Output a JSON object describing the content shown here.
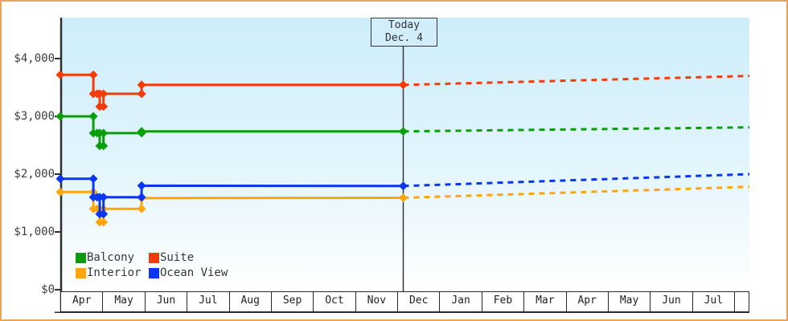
{
  "page": {
    "border_color": "#e9a45c",
    "background": "#ffffff",
    "plot_bg_top": "#cdeefb",
    "plot_bg_bottom": "#ffffff",
    "axis_color": "#2b2f31"
  },
  "chart_data": {
    "type": "line",
    "title": "",
    "description": "Cabin price history with dotted forecast after today",
    "y_axis": {
      "tick_labels": [
        "$0",
        "$1,000",
        "$2,000",
        "$3,000",
        "$4,000"
      ],
      "tick_values": [
        0,
        1000,
        2000,
        3000,
        4000
      ],
      "ylim": [
        0,
        4700
      ],
      "grid": false
    },
    "x_axis": {
      "months": [
        "Apr",
        "May",
        "Jun",
        "Jul",
        "Aug",
        "Sep",
        "Oct",
        "Nov",
        "Dec",
        "Jan",
        "Feb",
        "Mar",
        "Apr",
        "May",
        "Jun",
        "Jul"
      ]
    },
    "today_marker": {
      "line1": "Today",
      "line2": "Dec. 4",
      "month_index": 8.1
    },
    "series": [
      {
        "name": "Interior",
        "color": "#ffa50d",
        "solid": [
          [
            0,
            1690
          ],
          [
            0.78,
            1690
          ],
          [
            0.78,
            1400
          ],
          [
            0.87,
            1400
          ],
          [
            0.93,
            1400
          ],
          [
            0.93,
            1170
          ],
          [
            1.02,
            1170
          ],
          [
            1.02,
            1400
          ],
          [
            1.92,
            1400
          ],
          [
            1.92,
            1585
          ],
          [
            8.1,
            1590
          ]
        ],
        "forecast": [
          [
            8.1,
            1590
          ],
          [
            16.28,
            1780
          ]
        ]
      },
      {
        "name": "Ocean View",
        "color": "#0936f0",
        "solid": [
          [
            0,
            1920
          ],
          [
            0.78,
            1920
          ],
          [
            0.78,
            1600
          ],
          [
            0.87,
            1600
          ],
          [
            0.93,
            1600
          ],
          [
            0.93,
            1310
          ],
          [
            1.02,
            1310
          ],
          [
            1.02,
            1600
          ],
          [
            1.92,
            1600
          ],
          [
            1.92,
            1800
          ],
          [
            8.1,
            1795
          ]
        ],
        "forecast": [
          [
            8.1,
            1795
          ],
          [
            16.28,
            2000
          ]
        ]
      },
      {
        "name": "Balcony",
        "color": "#0a9e0a",
        "solid": [
          [
            0,
            3000
          ],
          [
            0.78,
            3000
          ],
          [
            0.78,
            2710
          ],
          [
            0.87,
            2710
          ],
          [
            0.93,
            2710
          ],
          [
            0.93,
            2490
          ],
          [
            1.02,
            2490
          ],
          [
            1.02,
            2710
          ],
          [
            1.92,
            2710
          ],
          [
            1.92,
            2740
          ],
          [
            8.1,
            2740
          ]
        ],
        "forecast": [
          [
            8.1,
            2740
          ],
          [
            16.28,
            2810
          ]
        ]
      },
      {
        "name": "Suite",
        "color": "#f43b09",
        "solid": [
          [
            0,
            3720
          ],
          [
            0.78,
            3720
          ],
          [
            0.78,
            3390
          ],
          [
            0.87,
            3390
          ],
          [
            0.93,
            3390
          ],
          [
            0.93,
            3170
          ],
          [
            1.02,
            3170
          ],
          [
            1.02,
            3390
          ],
          [
            1.92,
            3390
          ],
          [
            1.92,
            3545
          ],
          [
            8.1,
            3545
          ]
        ],
        "forecast": [
          [
            8.1,
            3545
          ],
          [
            16.28,
            3700
          ]
        ]
      }
    ],
    "legend": {
      "position": "bottom-left",
      "items": [
        {
          "label": "Balcony",
          "color": "#0a9e0a"
        },
        {
          "label": "Suite",
          "color": "#f43b09"
        },
        {
          "label": "Interior",
          "color": "#ffa50d"
        },
        {
          "label": "Ocean View",
          "color": "#0936f0"
        }
      ]
    }
  }
}
